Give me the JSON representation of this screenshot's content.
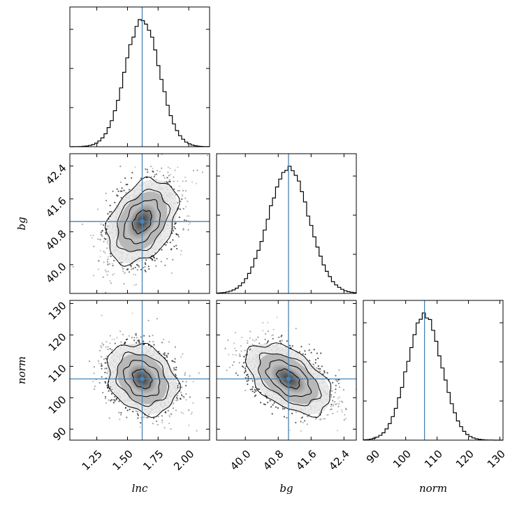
{
  "chart_data": {
    "type": "scatter",
    "subtype": "corner",
    "parameters": [
      {
        "name": "lnc",
        "label": "lnc",
        "range": [
          1.03,
          2.17
        ],
        "ticks": [
          "1.25",
          "1.50",
          "1.75",
          "2.00"
        ],
        "truth": 1.62,
        "mean": 1.62,
        "std": 0.14
      },
      {
        "name": "bg",
        "label": "bg",
        "range": [
          39.3,
          42.7
        ],
        "ticks": [
          "40.0",
          "40.8",
          "41.6",
          "42.4"
        ],
        "truth": 41.05,
        "mean": 41.05,
        "std": 0.5
      },
      {
        "name": "norm",
        "label": "norm",
        "range": [
          86.5,
          131.0
        ],
        "ticks": [
          "90",
          "100",
          "110",
          "120",
          "130"
        ],
        "truth": 106.0,
        "mean": 106.0,
        "std": 5.5
      }
    ],
    "correlations": [
      {
        "pair": [
          "lnc",
          "bg"
        ],
        "rho": 0.35
      },
      {
        "pair": [
          "lnc",
          "norm"
        ],
        "rho": -0.25
      },
      {
        "pair": [
          "bg",
          "norm"
        ],
        "rho": -0.5
      }
    ],
    "truth_line_color": "#4682b4",
    "grid": false,
    "legend": "none"
  }
}
